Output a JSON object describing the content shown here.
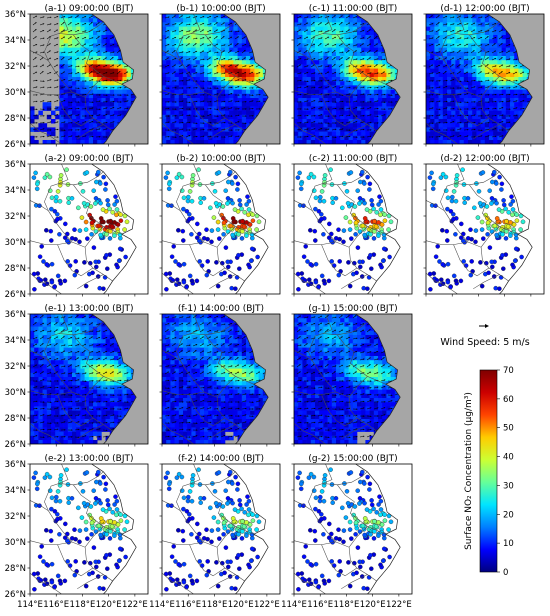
{
  "colors": {
    "land_mask": "#a6a6a6",
    "boundary": "#4a4a4a",
    "arrow": "#000000",
    "colormap": [
      "#00007f",
      "#0000ff",
      "#007fff",
      "#00e5ff",
      "#66ff99",
      "#ccff33",
      "#ffcc00",
      "#ff4400",
      "#cc0000",
      "#7f0000"
    ]
  },
  "figure": {
    "latitude_labels": [
      "26°N",
      "28°N",
      "30°N",
      "32°N",
      "34°N",
      "36°N"
    ],
    "longitude_labels": [
      "114°E",
      "116°E",
      "118°E",
      "120°E",
      "122°E"
    ],
    "legend": {
      "arrow_icon": "wind-vector-arrow-icon",
      "wind_label": "Wind Speed: 5 m/s"
    },
    "colorbar": {
      "label": "Surface NO₂ Concentration (μg/m³)",
      "ticks": [
        "0",
        "10",
        "20",
        "30",
        "40",
        "50",
        "60",
        "70"
      ],
      "min": 0,
      "max": 70
    }
  },
  "panels": [
    {
      "id": "a-1",
      "title": "(a-1) 09:00:00 (BJT)",
      "kind": "grid",
      "level": 1.0,
      "row": 0,
      "col": 0
    },
    {
      "id": "b-1",
      "title": "(b-1) 10:00:00 (BJT)",
      "kind": "grid",
      "level": 0.85,
      "row": 0,
      "col": 1
    },
    {
      "id": "c-1",
      "title": "(c-1) 11:00:00 (BJT)",
      "kind": "grid",
      "level": 0.72,
      "row": 0,
      "col": 2
    },
    {
      "id": "d-1",
      "title": "(d-1) 12:00:00 (BJT)",
      "kind": "grid",
      "level": 0.6,
      "row": 0,
      "col": 3
    },
    {
      "id": "a-2",
      "title": "(a-2) 09:00:00 (BJT)",
      "kind": "sites",
      "level": 1.0,
      "row": 1,
      "col": 0
    },
    {
      "id": "b-2",
      "title": "(b-2) 10:00:00 (BJT)",
      "kind": "sites",
      "level": 0.85,
      "row": 1,
      "col": 1
    },
    {
      "id": "c-2",
      "title": "(c-2) 11:00:00 (BJT)",
      "kind": "sites",
      "level": 0.7,
      "row": 1,
      "col": 2
    },
    {
      "id": "d-2",
      "title": "(d-2) 12:00:00 (BJT)",
      "kind": "sites",
      "level": 0.6,
      "row": 1,
      "col": 3
    },
    {
      "id": "e-1",
      "title": "(e-1) 13:00:00 (BJT)",
      "kind": "grid",
      "level": 0.48,
      "row": 2,
      "col": 0
    },
    {
      "id": "f-1",
      "title": "(f-1) 14:00:00 (BJT)",
      "kind": "grid",
      "level": 0.4,
      "row": 2,
      "col": 1
    },
    {
      "id": "g-1",
      "title": "(g-1) 15:00:00 (BJT)",
      "kind": "grid",
      "level": 0.36,
      "row": 2,
      "col": 2
    },
    {
      "id": "e-2",
      "title": "(e-2) 13:00:00 (BJT)",
      "kind": "sites",
      "level": 0.5,
      "row": 3,
      "col": 0
    },
    {
      "id": "f-2",
      "title": "(f-2) 14:00:00 (BJT)",
      "kind": "sites",
      "level": 0.42,
      "row": 3,
      "col": 1
    },
    {
      "id": "g-2",
      "title": "(g-2) 15:00:00 (BJT)",
      "kind": "sites",
      "level": 0.38,
      "row": 3,
      "col": 2
    }
  ]
}
